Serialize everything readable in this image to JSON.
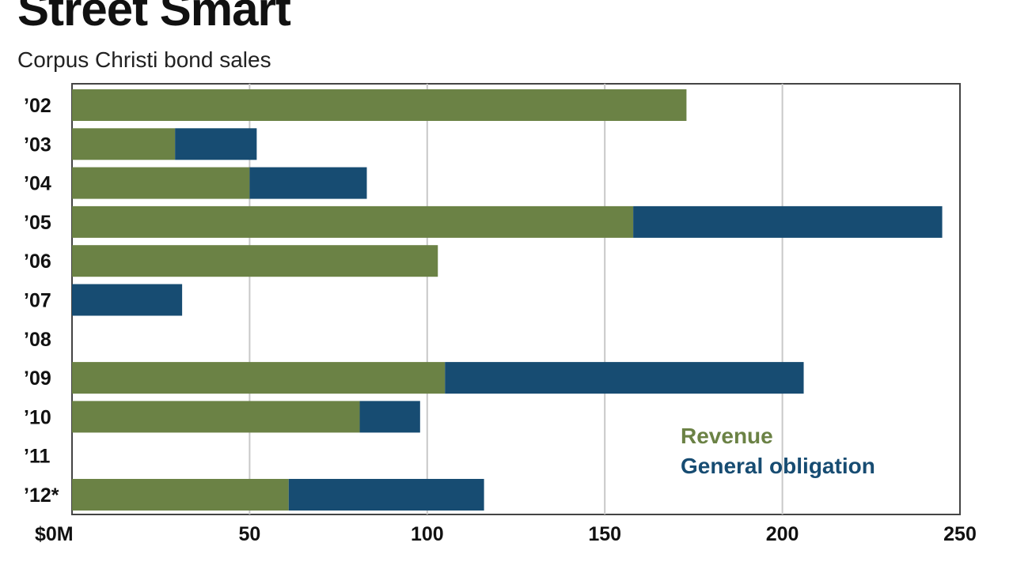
{
  "header": {
    "title": "Street Smart",
    "subtitle": "Corpus Christi bond sales"
  },
  "colors": {
    "revenue": "#6b8245",
    "general_obligation": "#174c72",
    "grid": "#c8c8c8",
    "axis": "#444444"
  },
  "chart_data": {
    "type": "bar",
    "orientation": "horizontal",
    "stacked": true,
    "title": "Street Smart",
    "subtitle": "Corpus Christi bond sales",
    "categories": [
      "’02",
      "’03",
      "’04",
      "’05",
      "’06",
      "’07",
      "’08",
      "’09",
      "’10",
      "’11",
      "’12*"
    ],
    "series": [
      {
        "name": "Revenue",
        "values": [
          173,
          29,
          50,
          158,
          103,
          0,
          0,
          105,
          81,
          0,
          61
        ]
      },
      {
        "name": "General obligation",
        "values": [
          0,
          23,
          33,
          87,
          0,
          31,
          0,
          101,
          17,
          0,
          55
        ]
      }
    ],
    "xlim": [
      0,
      250
    ],
    "xticks": [
      {
        "value": 0,
        "label": "$0M"
      },
      {
        "value": 50,
        "label": "50"
      },
      {
        "value": 100,
        "label": "100"
      },
      {
        "value": 150,
        "label": "150"
      },
      {
        "value": 200,
        "label": "200"
      },
      {
        "value": 250,
        "label": "250"
      }
    ],
    "grid": true,
    "legend": {
      "position": "bottom-right",
      "entries": [
        "Revenue",
        "General obligation"
      ]
    }
  }
}
